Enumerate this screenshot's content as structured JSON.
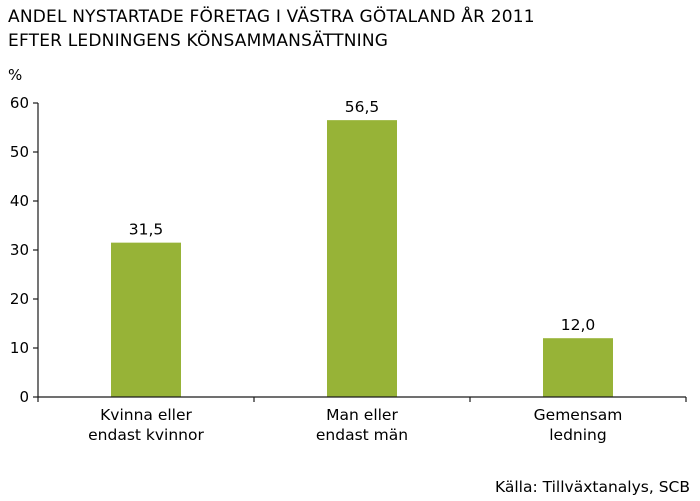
{
  "chart_data": {
    "type": "bar",
    "title": [
      "ANDEL NYSTARTADE FÖRETAG I VÄSTRA GÖTALAND ÅR 2011",
      "EFTER LEDNINGENS KÖNSAMMANSÄTTNING"
    ],
    "ylabel": "%",
    "ylim": [
      0,
      60
    ],
    "yticks": [
      0,
      10,
      20,
      30,
      40,
      50,
      60
    ],
    "categories": [
      [
        "Kvinna eller",
        "endast kvinnor"
      ],
      [
        "Man eller",
        "endast män"
      ],
      [
        "Gemensam",
        "ledning"
      ]
    ],
    "values": [
      31.5,
      56.5,
      12.0
    ],
    "value_labels": [
      "31,5",
      "56,5",
      "12,0"
    ],
    "source": "Källa: Tillväxtanalys, SCB",
    "grid": false,
    "colors": {
      "bar": "#97b337",
      "axis": "#1a1a1a"
    }
  }
}
